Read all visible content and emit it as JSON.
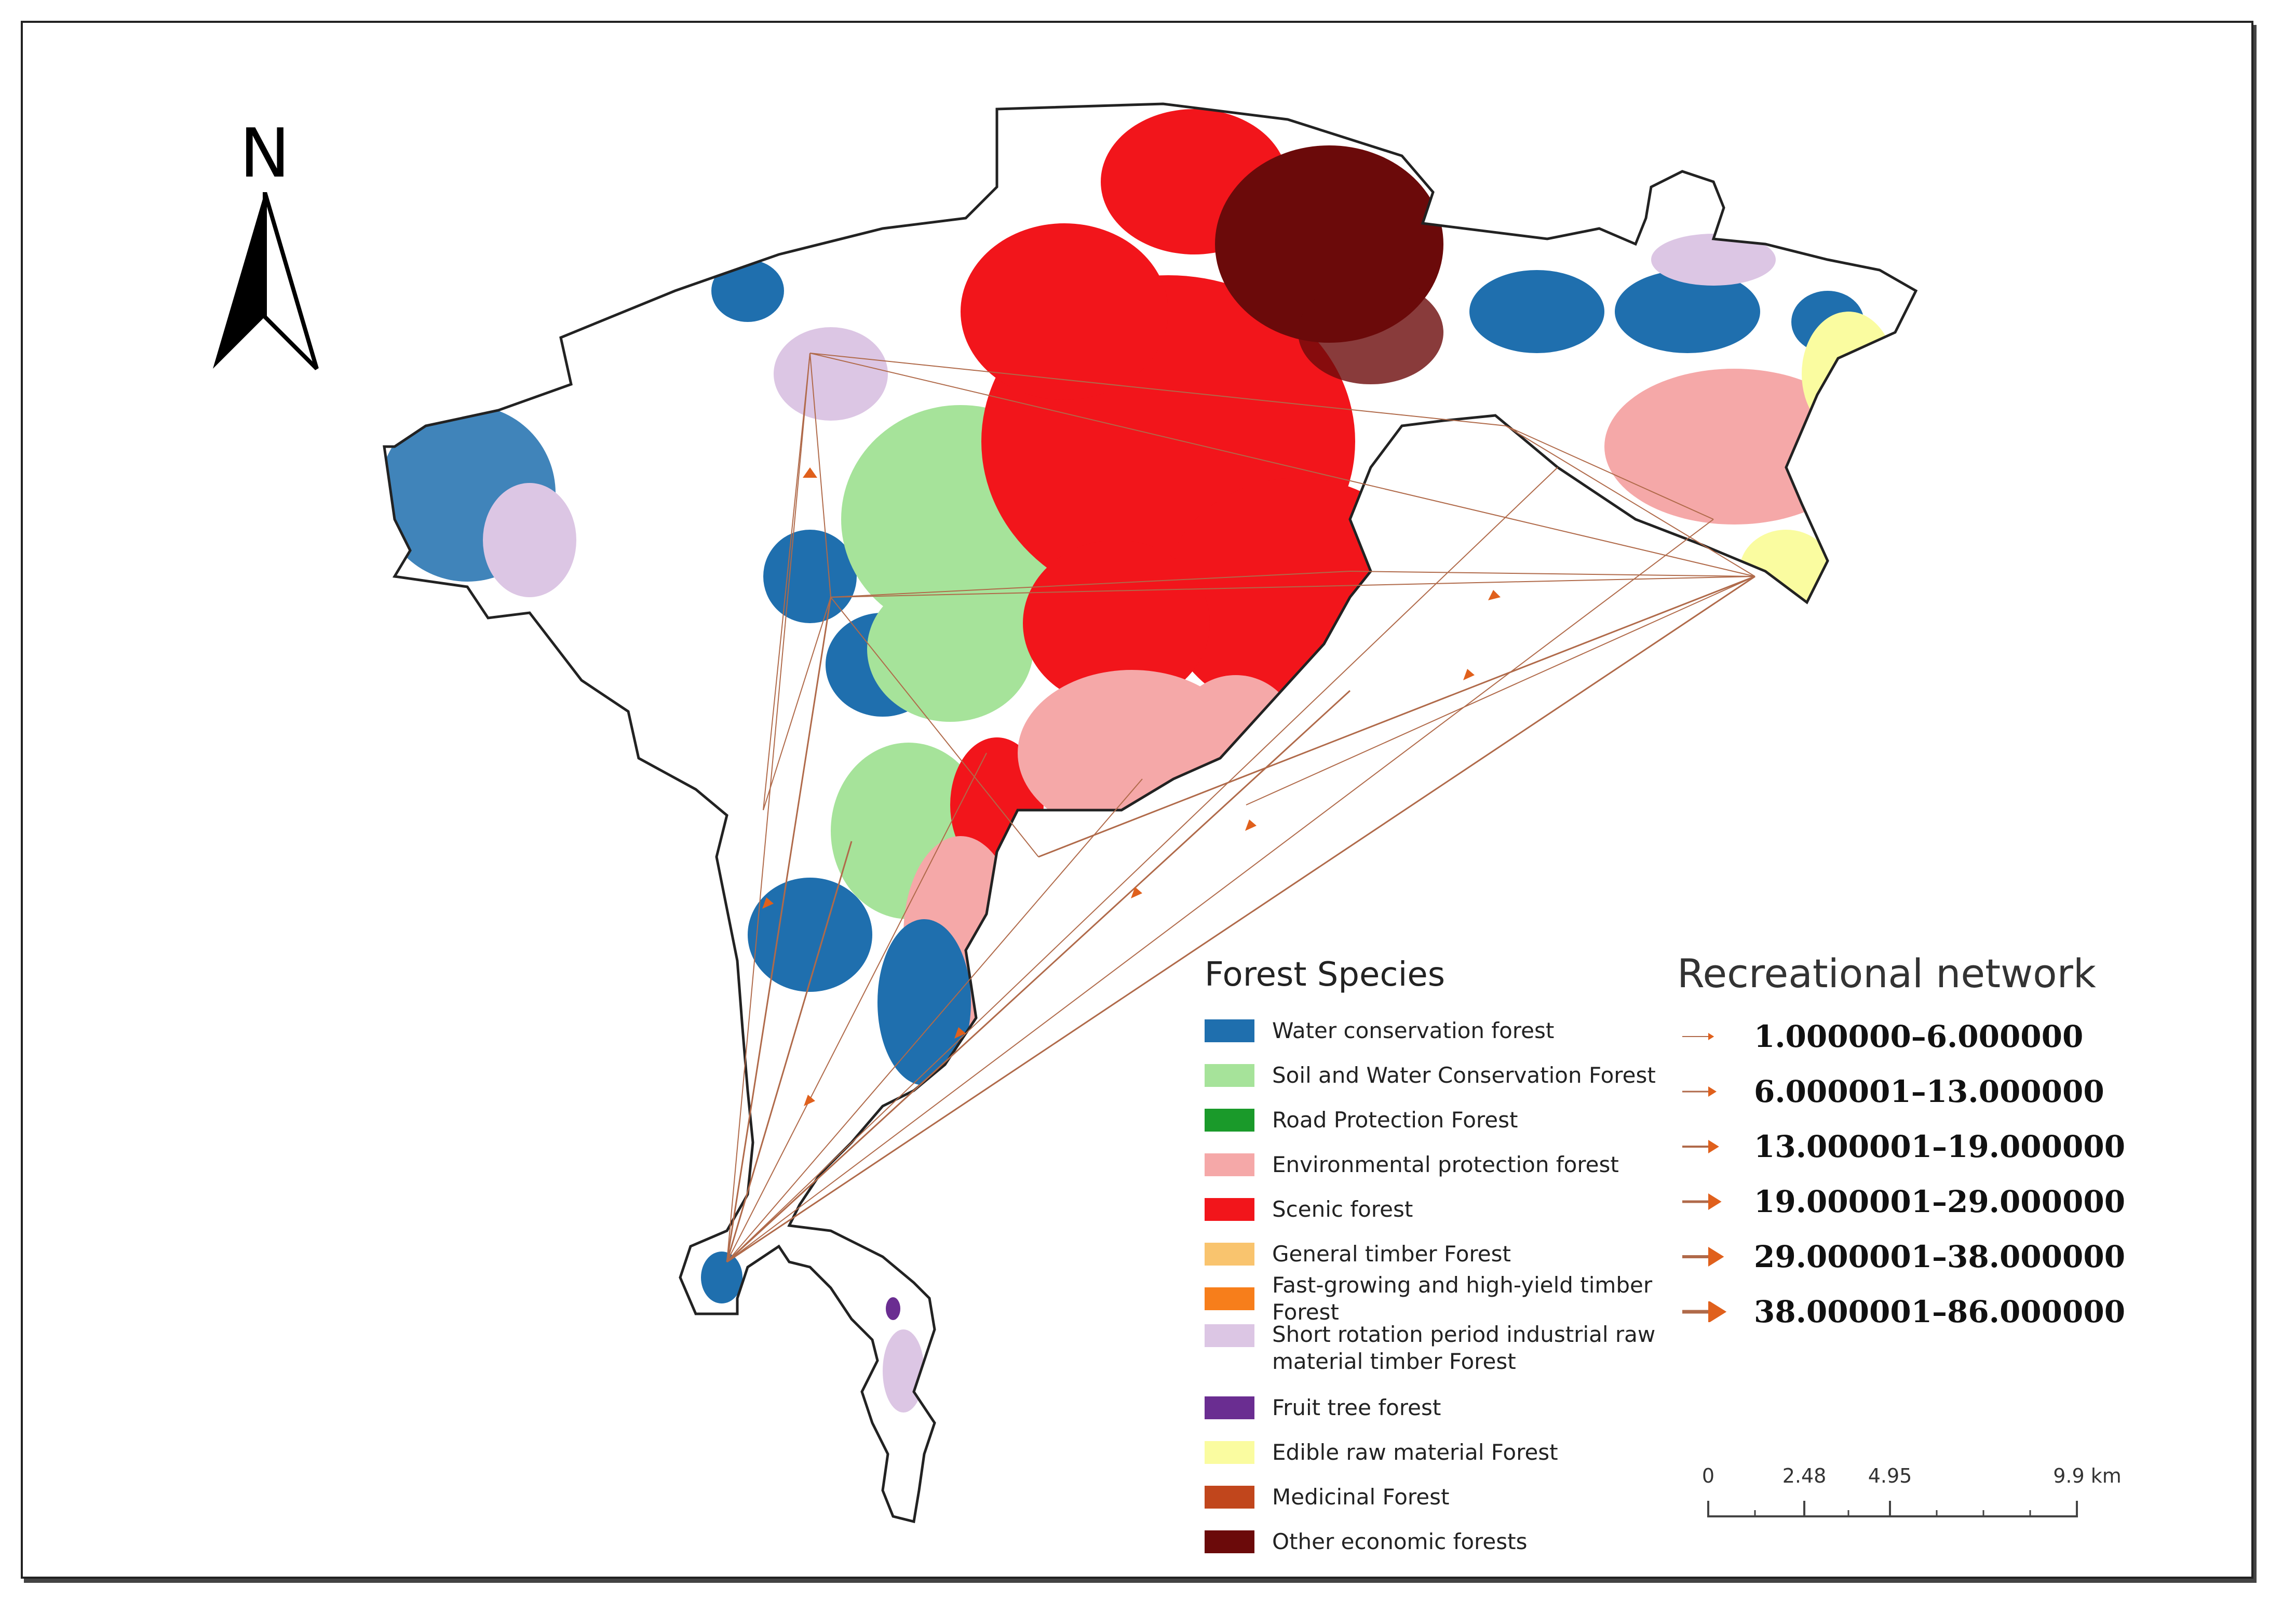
{
  "north_arrow": {
    "label": "N"
  },
  "forest_legend": {
    "title": "Forest Species",
    "items": [
      {
        "label": "Water conservation forest",
        "color": "#1f6fae"
      },
      {
        "label": "Soil and Water Conservation Forest",
        "color": "#a6e39a"
      },
      {
        "label": "Road Protection Forest",
        "color": "#1a9a2a"
      },
      {
        "label": "Environmental protection forest",
        "color": "#f5a8a8"
      },
      {
        "label": "Scenic forest",
        "color": "#f2151b"
      },
      {
        "label": "General timber Forest",
        "color": "#f9c46e"
      },
      {
        "label": "Fast-growing and high-yield timber Forest",
        "color": "#f77e1b"
      },
      {
        "label": "Short rotation period industrial raw material timber Forest",
        "color": "#dcc6e4"
      },
      {
        "label": "Fruit tree forest",
        "color": "#6a2d91"
      },
      {
        "label": "Edible raw material Forest",
        "color": "#fafca0"
      },
      {
        "label": "Medicinal Forest",
        "color": "#c1461c"
      },
      {
        "label": "Other economic forests",
        "color": "#6b0a0a"
      }
    ]
  },
  "recreational_legend": {
    "title": "Recreational network",
    "items": [
      {
        "label": "1.000000–6.000000",
        "weight": 1
      },
      {
        "label": "6.000001–13.000000",
        "weight": 2
      },
      {
        "label": "13.000001–19.000000",
        "weight": 3
      },
      {
        "label": "19.000001–29.000000",
        "weight": 4
      },
      {
        "label": "29.000001–38.000000",
        "weight": 5
      },
      {
        "label": "38.000001–86.000000",
        "weight": 6
      }
    ],
    "line_color": "#b06a4a",
    "arrow_color": "#e0601c"
  },
  "scale_bar": {
    "ticks": [
      "0",
      "2.48",
      "4.95",
      "9.9 km"
    ]
  }
}
